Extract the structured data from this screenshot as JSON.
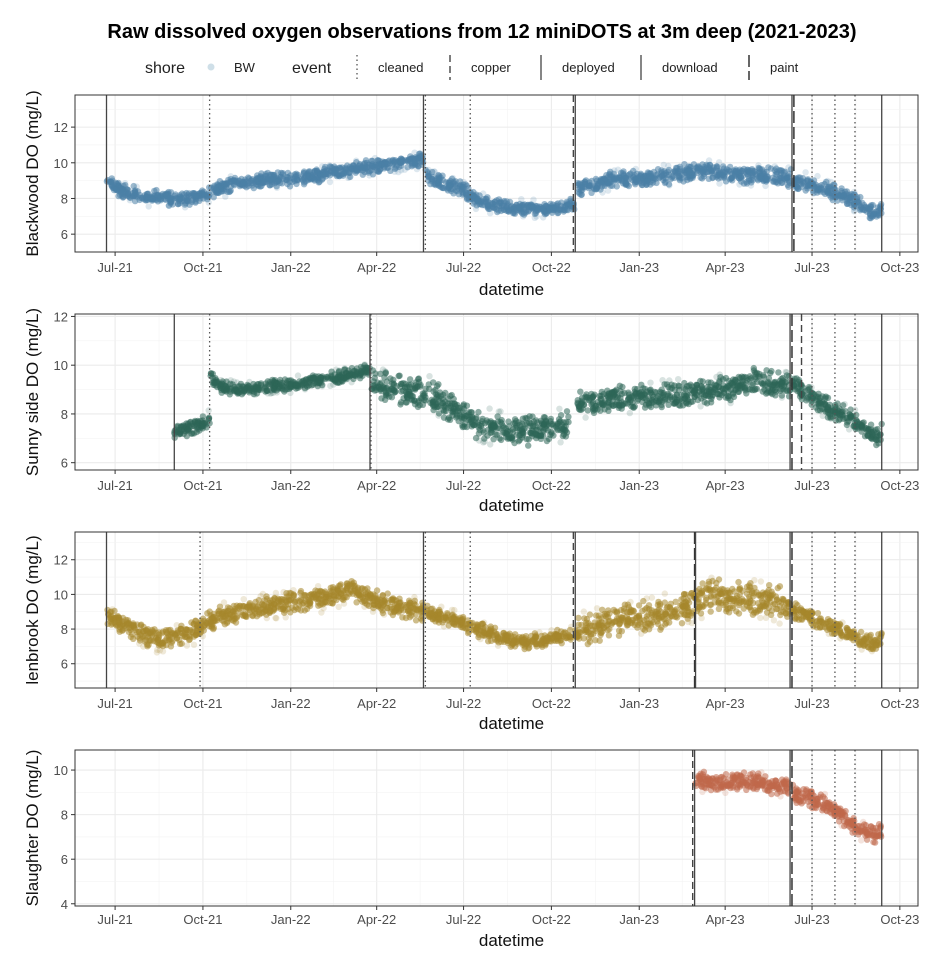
{
  "chart_data": {
    "type": "scatter",
    "title": "Raw dissolved oxygen observations from 12 miniDOTS at 3m deep (2021-2023)",
    "legend": {
      "placement": "top",
      "shore_title": "shore",
      "shore_items": [
        "BW"
      ],
      "event_title": "event",
      "event_items": [
        {
          "label": "cleaned",
          "style": "dotted"
        },
        {
          "label": "copper",
          "style": "dashed"
        },
        {
          "label": "deployed",
          "style": "solid"
        },
        {
          "label": "download",
          "style": "solid"
        },
        {
          "label": "paint",
          "style": "longdash"
        }
      ]
    },
    "x_axis": {
      "label": "datetime",
      "range": [
        "2021-05-20",
        "2023-10-20"
      ],
      "ticks": [
        {
          "date": "2021-07-01",
          "label": "Jul-21"
        },
        {
          "date": "2021-10-01",
          "label": "Oct-21"
        },
        {
          "date": "2022-01-01",
          "label": "Jan-22"
        },
        {
          "date": "2022-04-01",
          "label": "Apr-22"
        },
        {
          "date": "2022-07-01",
          "label": "Jul-22"
        },
        {
          "date": "2022-10-01",
          "label": "Oct-22"
        },
        {
          "date": "2023-01-01",
          "label": "Jan-23"
        },
        {
          "date": "2023-04-01",
          "label": "Apr-23"
        },
        {
          "date": "2023-07-01",
          "label": "Jul-23"
        },
        {
          "date": "2023-10-01",
          "label": "Oct-23"
        }
      ]
    },
    "grid": true,
    "panels": [
      {
        "ylabel": "Blackwood DO (mg/L)",
        "color": "#4a7fa5",
        "ylim": [
          5,
          13.8
        ],
        "yticks": [
          6,
          8,
          10,
          12
        ],
        "series": [
          {
            "x": [
              "2021-06-22",
              "2021-07-05",
              "2021-07-20",
              "2021-08-05",
              "2021-08-20",
              "2021-09-05",
              "2021-09-20",
              "2021-10-05",
              "2021-10-20",
              "2021-11-10",
              "2021-12-01",
              "2022-01-01",
              "2022-02-01",
              "2022-03-01",
              "2022-04-01",
              "2022-04-25",
              "2022-05-20"
            ],
            "y": [
              9.1,
              8.5,
              8.3,
              8.0,
              8.1,
              7.9,
              8.0,
              8.2,
              8.6,
              8.9,
              9.0,
              9.1,
              9.3,
              9.6,
              9.8,
              10.0,
              10.2
            ],
            "spread": 0.8
          },
          {
            "x": [
              "2022-05-22",
              "2022-06-05",
              "2022-06-20",
              "2022-07-01",
              "2022-07-10",
              "2022-07-25",
              "2022-08-10",
              "2022-09-01",
              "2022-09-20",
              "2022-10-10",
              "2022-10-25"
            ],
            "y": [
              9.2,
              9.0,
              8.7,
              8.5,
              8.0,
              7.7,
              7.6,
              7.5,
              7.4,
              7.5,
              7.6
            ],
            "spread": 0.8
          },
          {
            "x": [
              "2022-10-28",
              "2022-11-10",
              "2022-12-01",
              "2023-01-01",
              "2023-02-01",
              "2023-03-01",
              "2023-04-01",
              "2023-05-01",
              "2023-06-01",
              "2023-06-10"
            ],
            "y": [
              8.5,
              8.8,
              9.0,
              9.1,
              9.3,
              9.5,
              9.4,
              9.3,
              9.2,
              9.1
            ],
            "spread": 1.0
          },
          {
            "x": [
              "2023-06-12",
              "2023-06-25",
              "2023-07-10",
              "2023-07-25",
              "2023-08-10",
              "2023-08-25",
              "2023-09-05",
              "2023-09-12"
            ],
            "y": [
              9.0,
              8.9,
              8.6,
              8.3,
              8.0,
              7.5,
              7.2,
              7.4
            ],
            "spread": 0.9
          }
        ],
        "events": [
          {
            "date": "2021-06-22",
            "type": "deployed"
          },
          {
            "date": "2021-10-08",
            "type": "cleaned"
          },
          {
            "date": "2022-05-20",
            "type": "download"
          },
          {
            "date": "2022-05-22",
            "type": "cleaned"
          },
          {
            "date": "2022-07-08",
            "type": "cleaned"
          },
          {
            "date": "2022-10-24",
            "type": "copper"
          },
          {
            "date": "2022-10-26",
            "type": "download"
          },
          {
            "date": "2023-06-10",
            "type": "download"
          },
          {
            "date": "2023-06-12",
            "type": "paint"
          },
          {
            "date": "2023-07-01",
            "type": "cleaned"
          },
          {
            "date": "2023-07-25",
            "type": "cleaned"
          },
          {
            "date": "2023-08-15",
            "type": "cleaned"
          },
          {
            "date": "2023-09-12",
            "type": "download"
          }
        ]
      },
      {
        "ylabel": "Sunny side DO (mg/L)",
        "color": "#2e6657",
        "ylim": [
          5.7,
          12.1
        ],
        "yticks": [
          6,
          8,
          10,
          12
        ],
        "series": [
          {
            "x": [
              "2021-09-01",
              "2021-09-15",
              "2021-09-30",
              "2021-10-08"
            ],
            "y": [
              7.3,
              7.4,
              7.6,
              7.8
            ],
            "spread": 0.6
          },
          {
            "x": [
              "2021-10-09",
              "2021-10-20",
              "2021-11-10",
              "2021-12-01",
              "2022-01-01",
              "2022-02-01",
              "2022-03-01",
              "2022-03-25"
            ],
            "y": [
              9.5,
              9.1,
              9.0,
              9.1,
              9.2,
              9.4,
              9.6,
              9.8
            ],
            "spread": 0.5
          },
          {
            "x": [
              "2022-03-26",
              "2022-04-20",
              "2022-05-15",
              "2022-06-05",
              "2022-06-25",
              "2022-07-15",
              "2022-08-10",
              "2022-09-01",
              "2022-09-20",
              "2022-10-10",
              "2022-10-20"
            ],
            "y": [
              9.2,
              9.0,
              8.9,
              8.6,
              8.1,
              7.6,
              7.4,
              7.3,
              7.4,
              7.5,
              7.6
            ],
            "spread": 1.2
          },
          {
            "x": [
              "2022-10-28",
              "2022-11-15",
              "2022-12-01",
              "2023-01-01",
              "2023-02-01",
              "2023-03-01",
              "2023-04-01",
              "2023-05-01",
              "2023-06-01",
              "2023-06-08"
            ],
            "y": [
              8.4,
              8.5,
              8.6,
              8.7,
              8.8,
              8.9,
              9.0,
              9.4,
              9.2,
              9.1
            ],
            "spread": 1.0
          },
          {
            "x": [
              "2023-06-10",
              "2023-06-25",
              "2023-07-10",
              "2023-07-25",
              "2023-08-10",
              "2023-08-25",
              "2023-09-05",
              "2023-09-12"
            ],
            "y": [
              9.3,
              8.8,
              8.4,
              8.1,
              7.8,
              7.4,
              7.0,
              7.2
            ],
            "spread": 0.8
          }
        ],
        "events": [
          {
            "date": "2021-09-01",
            "type": "deployed"
          },
          {
            "date": "2021-10-08",
            "type": "cleaned"
          },
          {
            "date": "2022-03-25",
            "type": "download"
          },
          {
            "date": "2022-03-26",
            "type": "cleaned"
          },
          {
            "date": "2023-06-08",
            "type": "download"
          },
          {
            "date": "2023-06-10",
            "type": "paint"
          },
          {
            "date": "2023-06-20",
            "type": "copper"
          },
          {
            "date": "2023-07-01",
            "type": "cleaned"
          },
          {
            "date": "2023-07-25",
            "type": "cleaned"
          },
          {
            "date": "2023-08-15",
            "type": "cleaned"
          },
          {
            "date": "2023-09-12",
            "type": "download"
          }
        ]
      },
      {
        "ylabel": "lenbrook DO (mg/L)",
        "color": "#a6862b",
        "ylim": [
          4.6,
          13.6
        ],
        "yticks": [
          6,
          8,
          10,
          12
        ],
        "series": [
          {
            "x": [
              "2021-06-22",
              "2021-07-05",
              "2021-07-20",
              "2021-08-05",
              "2021-08-20",
              "2021-09-05",
              "2021-09-25",
              "2021-10-05",
              "2021-10-20",
              "2021-11-15",
              "2021-12-10",
              "2022-01-10",
              "2022-02-10",
              "2022-03-05",
              "2022-03-25",
              "2022-04-15",
              "2022-05-10",
              "2022-05-20"
            ],
            "y": [
              8.6,
              8.4,
              8.0,
              7.6,
              7.4,
              7.6,
              8.0,
              8.4,
              8.8,
              9.1,
              9.3,
              9.6,
              9.9,
              10.3,
              9.8,
              9.4,
              9.1,
              9.0
            ],
            "spread": 1.2
          },
          {
            "x": [
              "2022-05-22",
              "2022-06-05",
              "2022-06-25",
              "2022-07-10",
              "2022-07-25",
              "2022-08-10",
              "2022-09-01",
              "2022-09-20",
              "2022-10-05",
              "2022-10-22"
            ],
            "y": [
              9.0,
              8.8,
              8.5,
              8.1,
              7.8,
              7.5,
              7.3,
              7.3,
              7.5,
              7.6
            ],
            "spread": 0.9
          },
          {
            "x": [
              "2022-10-26",
              "2022-11-20",
              "2022-12-15",
              "2023-01-10",
              "2023-02-05",
              "2023-02-28",
              "2023-03-20",
              "2023-04-15",
              "2023-05-10",
              "2023-06-01",
              "2023-06-08"
            ],
            "y": [
              7.9,
              8.2,
              8.5,
              8.8,
              9.0,
              9.5,
              10.0,
              9.8,
              9.7,
              9.5,
              9.4
            ],
            "spread": 1.8
          },
          {
            "x": [
              "2023-06-10",
              "2023-06-25",
              "2023-07-10",
              "2023-07-25",
              "2023-08-10",
              "2023-08-25",
              "2023-09-05",
              "2023-09-12"
            ],
            "y": [
              9.1,
              8.8,
              8.4,
              8.1,
              7.7,
              7.3,
              7.2,
              7.4
            ],
            "spread": 0.9
          }
        ],
        "events": [
          {
            "date": "2021-06-22",
            "type": "deployed"
          },
          {
            "date": "2021-09-28",
            "type": "cleaned"
          },
          {
            "date": "2022-05-20",
            "type": "download"
          },
          {
            "date": "2022-05-22",
            "type": "cleaned"
          },
          {
            "date": "2022-07-08",
            "type": "cleaned"
          },
          {
            "date": "2022-10-24",
            "type": "copper"
          },
          {
            "date": "2022-10-26",
            "type": "download"
          },
          {
            "date": "2023-02-28",
            "type": "paint"
          },
          {
            "date": "2023-03-01",
            "type": "download"
          },
          {
            "date": "2023-06-08",
            "type": "download"
          },
          {
            "date": "2023-06-10",
            "type": "paint"
          },
          {
            "date": "2023-07-01",
            "type": "cleaned"
          },
          {
            "date": "2023-07-25",
            "type": "cleaned"
          },
          {
            "date": "2023-08-15",
            "type": "cleaned"
          },
          {
            "date": "2023-09-12",
            "type": "download"
          }
        ]
      },
      {
        "ylabel": "Slaughter DO (mg/L)",
        "color": "#c0674a",
        "ylim": [
          3.9,
          10.9
        ],
        "yticks": [
          4,
          6,
          8,
          10
        ],
        "series": [
          {
            "x": [
              "2023-02-28",
              "2023-03-10",
              "2023-03-25",
              "2023-04-10",
              "2023-04-25",
              "2023-05-10",
              "2023-05-25",
              "2023-06-08"
            ],
            "y": [
              9.6,
              9.5,
              9.4,
              9.5,
              9.5,
              9.4,
              9.3,
              9.2
            ],
            "spread": 0.8
          },
          {
            "x": [
              "2023-06-10",
              "2023-06-25",
              "2023-07-10",
              "2023-07-25",
              "2023-08-10",
              "2023-08-25",
              "2023-09-05",
              "2023-09-12"
            ],
            "y": [
              9.0,
              8.8,
              8.5,
              8.2,
              7.6,
              7.2,
              7.1,
              7.3
            ],
            "spread": 0.8
          }
        ],
        "events": [
          {
            "date": "2023-02-26",
            "type": "copper"
          },
          {
            "date": "2023-02-28",
            "type": "deployed"
          },
          {
            "date": "2023-06-08",
            "type": "download"
          },
          {
            "date": "2023-06-10",
            "type": "paint"
          },
          {
            "date": "2023-07-01",
            "type": "cleaned"
          },
          {
            "date": "2023-07-25",
            "type": "cleaned"
          },
          {
            "date": "2023-08-15",
            "type": "cleaned"
          },
          {
            "date": "2023-09-12",
            "type": "download"
          }
        ]
      }
    ]
  }
}
